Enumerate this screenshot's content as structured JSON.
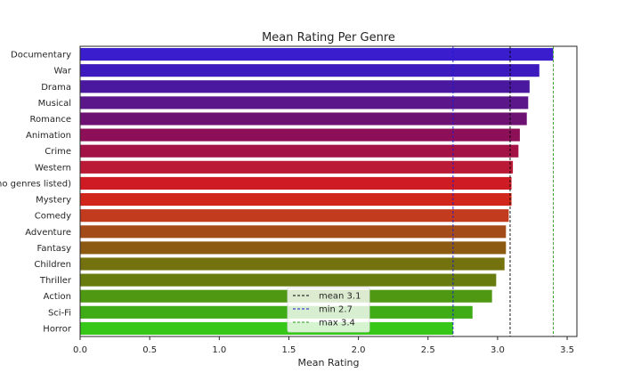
{
  "chart_data": {
    "type": "bar",
    "orientation": "horizontal",
    "title": "Mean Rating Per Genre",
    "xlabel": "Mean Rating",
    "ylabel": "",
    "xlim": [
      0,
      3.57
    ],
    "xticks": [
      "0.0",
      "0.5",
      "1.0",
      "1.5",
      "2.0",
      "2.5",
      "3.0",
      "3.5"
    ],
    "categories": [
      "Documentary",
      "War",
      "Drama",
      "Musical",
      "Romance",
      "Animation",
      "Crime",
      "Western",
      "(no genres listed)",
      "Mystery",
      "Comedy",
      "Adventure",
      "Fantasy",
      "Children",
      "Thriller",
      "Action",
      "Sci-Fi",
      "Horror"
    ],
    "values": [
      3.4,
      3.3,
      3.23,
      3.22,
      3.21,
      3.16,
      3.15,
      3.11,
      3.1,
      3.1,
      3.08,
      3.06,
      3.06,
      3.05,
      2.99,
      2.96,
      2.82,
      2.68
    ],
    "colors": [
      "#3a1ecd",
      "#3d1abe",
      "#4a189f",
      "#5b168a",
      "#6d1272",
      "#8c0f57",
      "#a31346",
      "#bb1a37",
      "#cf1c24",
      "#d0261b",
      "#c23b1f",
      "#a34b19",
      "#8d5a12",
      "#74710f",
      "#677b0f",
      "#4f9912",
      "#3fac15",
      "#36c718"
    ],
    "reference_lines": [
      {
        "label": "mean 3.1",
        "value": 3.09,
        "color": "#000000"
      },
      {
        "label": "min 2.7",
        "value": 2.68,
        "color": "#1a1ad2"
      },
      {
        "label": "max 3.4",
        "value": 3.4,
        "color": "#2a9a1a"
      }
    ],
    "grid": false,
    "legend_position": "lower center"
  }
}
